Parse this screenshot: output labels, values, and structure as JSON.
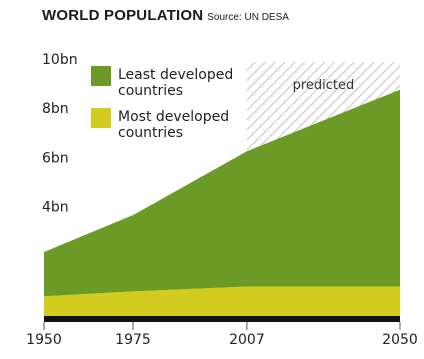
{
  "chart_data": {
    "type": "area",
    "title": "WORLD POPULATION",
    "subtitle": "Source: UN DESA",
    "xlabel": "",
    "ylabel": "",
    "x": [
      1950,
      1975,
      2007,
      2050
    ],
    "x_tick_labels": [
      "1950",
      "1975",
      "2007",
      "2050"
    ],
    "y_ticks": [
      4,
      6,
      8,
      10
    ],
    "y_tick_labels": [
      "4bn",
      "6bn",
      "8bn",
      "10bn"
    ],
    "ylim": [
      0,
      10
    ],
    "stacked": true,
    "series": [
      {
        "name": "Most developed countries",
        "values": [
          0.8,
          1.0,
          1.2,
          1.2
        ],
        "color": "#d3cc1e"
      },
      {
        "name": "Least developed countries",
        "values": [
          1.8,
          3.1,
          5.5,
          8.0
        ],
        "color": "#6b9a27"
      }
    ],
    "legend": {
      "position": "top-left",
      "items": [
        "Least developed\ncountries",
        "Most developed\ncountries"
      ]
    },
    "annotation": {
      "text": "predicted",
      "x_range": [
        2007,
        2050
      ]
    },
    "grid": false
  }
}
